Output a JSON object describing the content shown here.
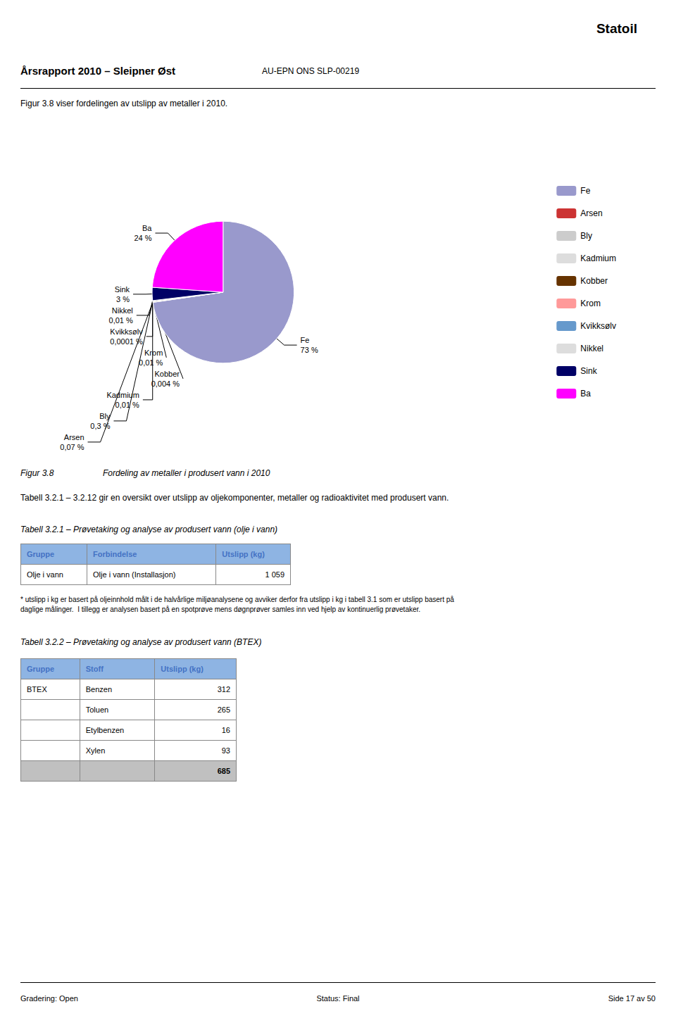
{
  "chart_data": {
    "type": "pie",
    "title": "Årsrapport 2010 – Sleipner Øst",
    "subtitle": "AU-EPN ONS SLP-00219",
    "categories": [
      "Fe",
      "Arsen",
      "Bly",
      "Kadmium",
      "Kobber",
      "Krom",
      "Kvikksølv",
      "Nikkel",
      "Sink",
      "Ba"
    ],
    "values": [
      73,
      0.07,
      0.3,
      0.01,
      0.004,
      0.01,
      0.0001,
      0.01,
      3,
      24
    ],
    "value_labels": [
      "Fe\n73 %",
      "Arsen\n0,07 %",
      "Bly\n0,3 %",
      "Kadmium\n0,01 %",
      "Kobber\n0,004 %",
      "Krom\n0,01 %",
      "Kvikksølv\n0,0001 %",
      "Nikkel\n0,01 %",
      "Sink\n3 %",
      "Ba\n24 %"
    ],
    "colors": [
      "#9999CC",
      "#CC3333",
      "#CCCCCC",
      "#DDDDDD",
      "#663300",
      "#FF9999",
      "#6699CC",
      "#DDDDDD",
      "#000066",
      "#FF00FF"
    ],
    "data_labels": true,
    "legend": "right",
    "annotations": [
      "Statoil",
      "Figur 3.8 viser fordelingen av utslipp av metaller i 2010.",
      "Figur 3.8",
      "Fordeling av metaller i produsert vann i 2010",
      "Tabell 3.2.1 – 3.2.12 gir en oversikt over utslipp av oljekomponenter, metaller og radioaktivitet med produsert vann.",
      "* utslipp i kg er basert på oljeinnhold målt i de halvårlige miljøanalysene og avviker derfor fra utslipp i kg i tabell 3.1 som er utslipp basert på\ndaglige målinger.  I tillegg er analysen basert på en spotprøve mens døgnprøver samles inn ved hjelp av kontinuerlig prøvetaker.",
      "Gradering: Open",
      "Status: Final",
      "Side 17 av 50"
    ],
    "tables": [
      {
        "title": "Tabell 3.2.1 – Prøvetaking og analyse av produsert vann (olje i vann)",
        "headers": [
          "Gruppe",
          "Forbindelse",
          "Utslipp (kg)"
        ],
        "rows": [
          [
            "Olje i vann",
            "Olje i vann (Installasjon)",
            "1 059"
          ]
        ]
      },
      {
        "title": "Tabell 3.2.2 – Prøvetaking og analyse av produsert vann (BTEX)",
        "headers": [
          "Gruppe",
          "Stoff",
          "Utslipp (kg)"
        ],
        "rows": [
          [
            "BTEX",
            "Benzen",
            "312"
          ],
          [
            null,
            "Toluen",
            "265"
          ],
          [
            null,
            "Etylbenzen",
            "16"
          ],
          [
            null,
            "Xylen",
            "93"
          ],
          [
            null,
            null,
            "685"
          ]
        ]
      }
    ]
  }
}
